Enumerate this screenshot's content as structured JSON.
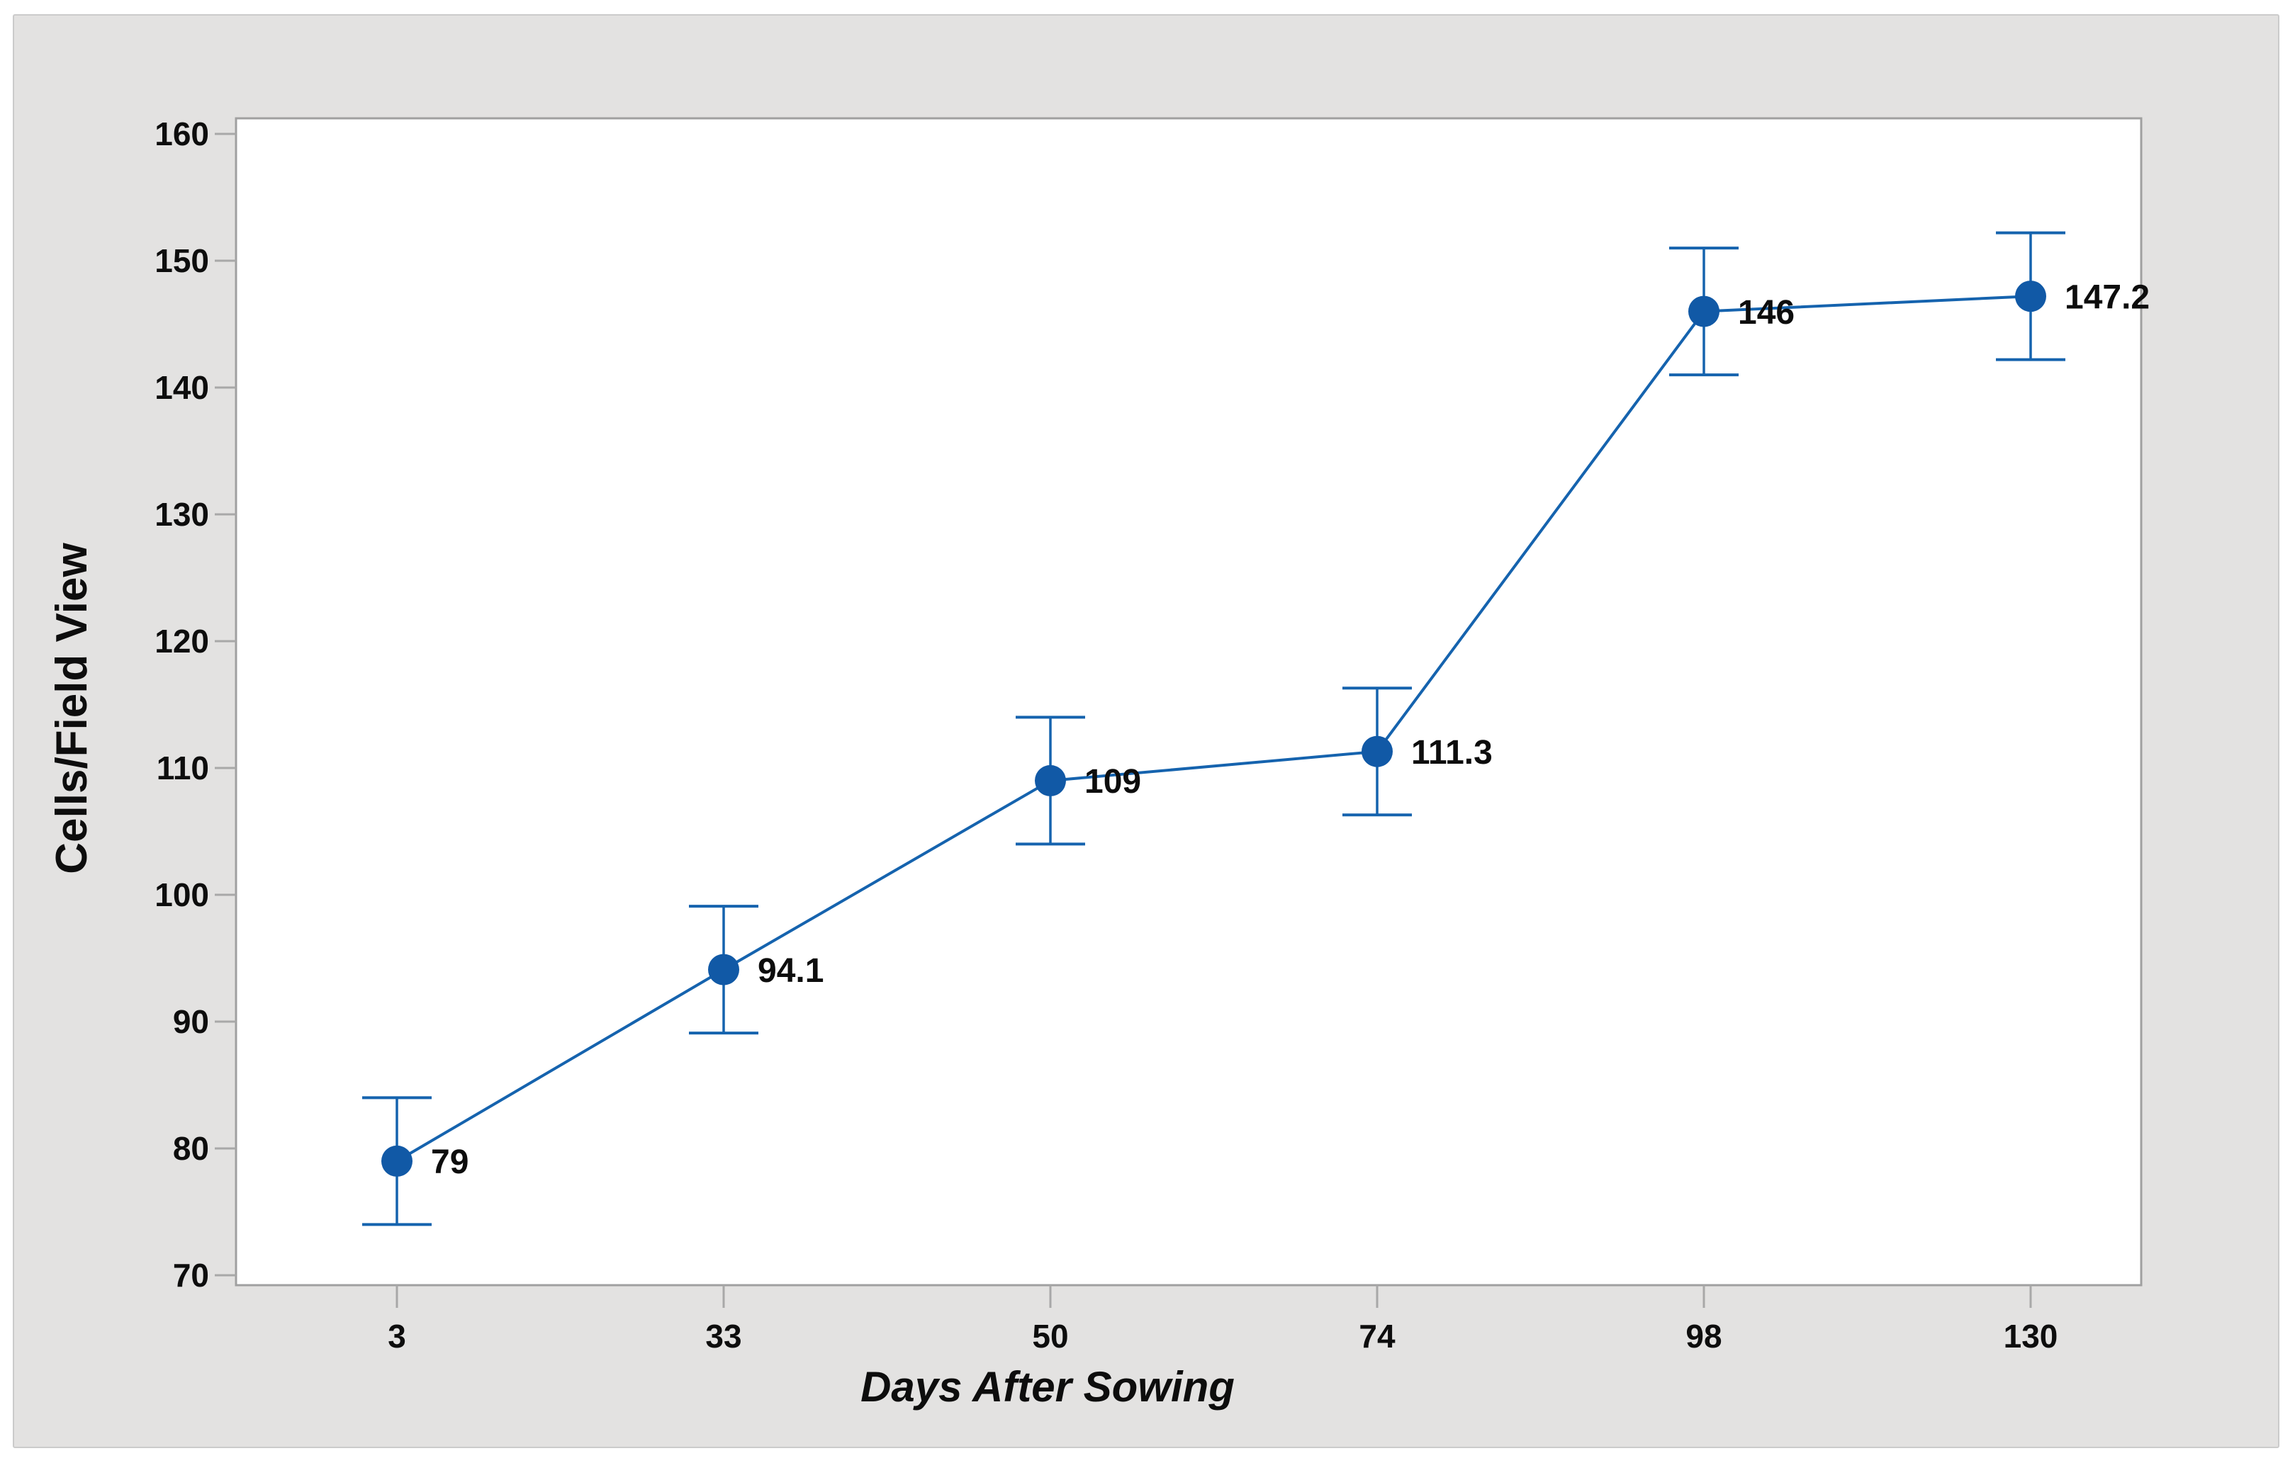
{
  "figure": {
    "page_background": "#ffffff",
    "panel_background": "#e3e2e1",
    "plot_background": "#ffffff",
    "plot_border_color": "#a0a0a0",
    "tick_color": "#a8a8a8",
    "text_color": "#0d0d0d"
  },
  "chart_data": {
    "type": "line",
    "title": "",
    "xlabel": "Days After Sowing",
    "ylabel": "Cells/Field View",
    "categories": [
      "3",
      "33",
      "50",
      "74",
      "98",
      "130"
    ],
    "values": [
      79,
      94.1,
      109,
      111.3,
      146,
      147.2
    ],
    "point_labels": [
      "79",
      "94.1",
      "109",
      "111.3",
      "146",
      "147.2"
    ],
    "error_low": [
      74.0,
      89.1,
      104.0,
      106.3,
      141.0,
      142.2
    ],
    "error_high": [
      84.0,
      99.1,
      114.0,
      116.3,
      151.0,
      152.2
    ],
    "yticks": [
      70,
      80,
      90,
      100,
      110,
      120,
      130,
      140,
      150,
      160
    ],
    "ylim": [
      69.2,
      161.2
    ],
    "grid": false,
    "legend": null,
    "x_spacing": "equal-interval",
    "marker_color": "#1159a6",
    "line_color": "#1563ae",
    "error_bar_color": "#1563ae",
    "label_color": "#0d0d0d"
  }
}
